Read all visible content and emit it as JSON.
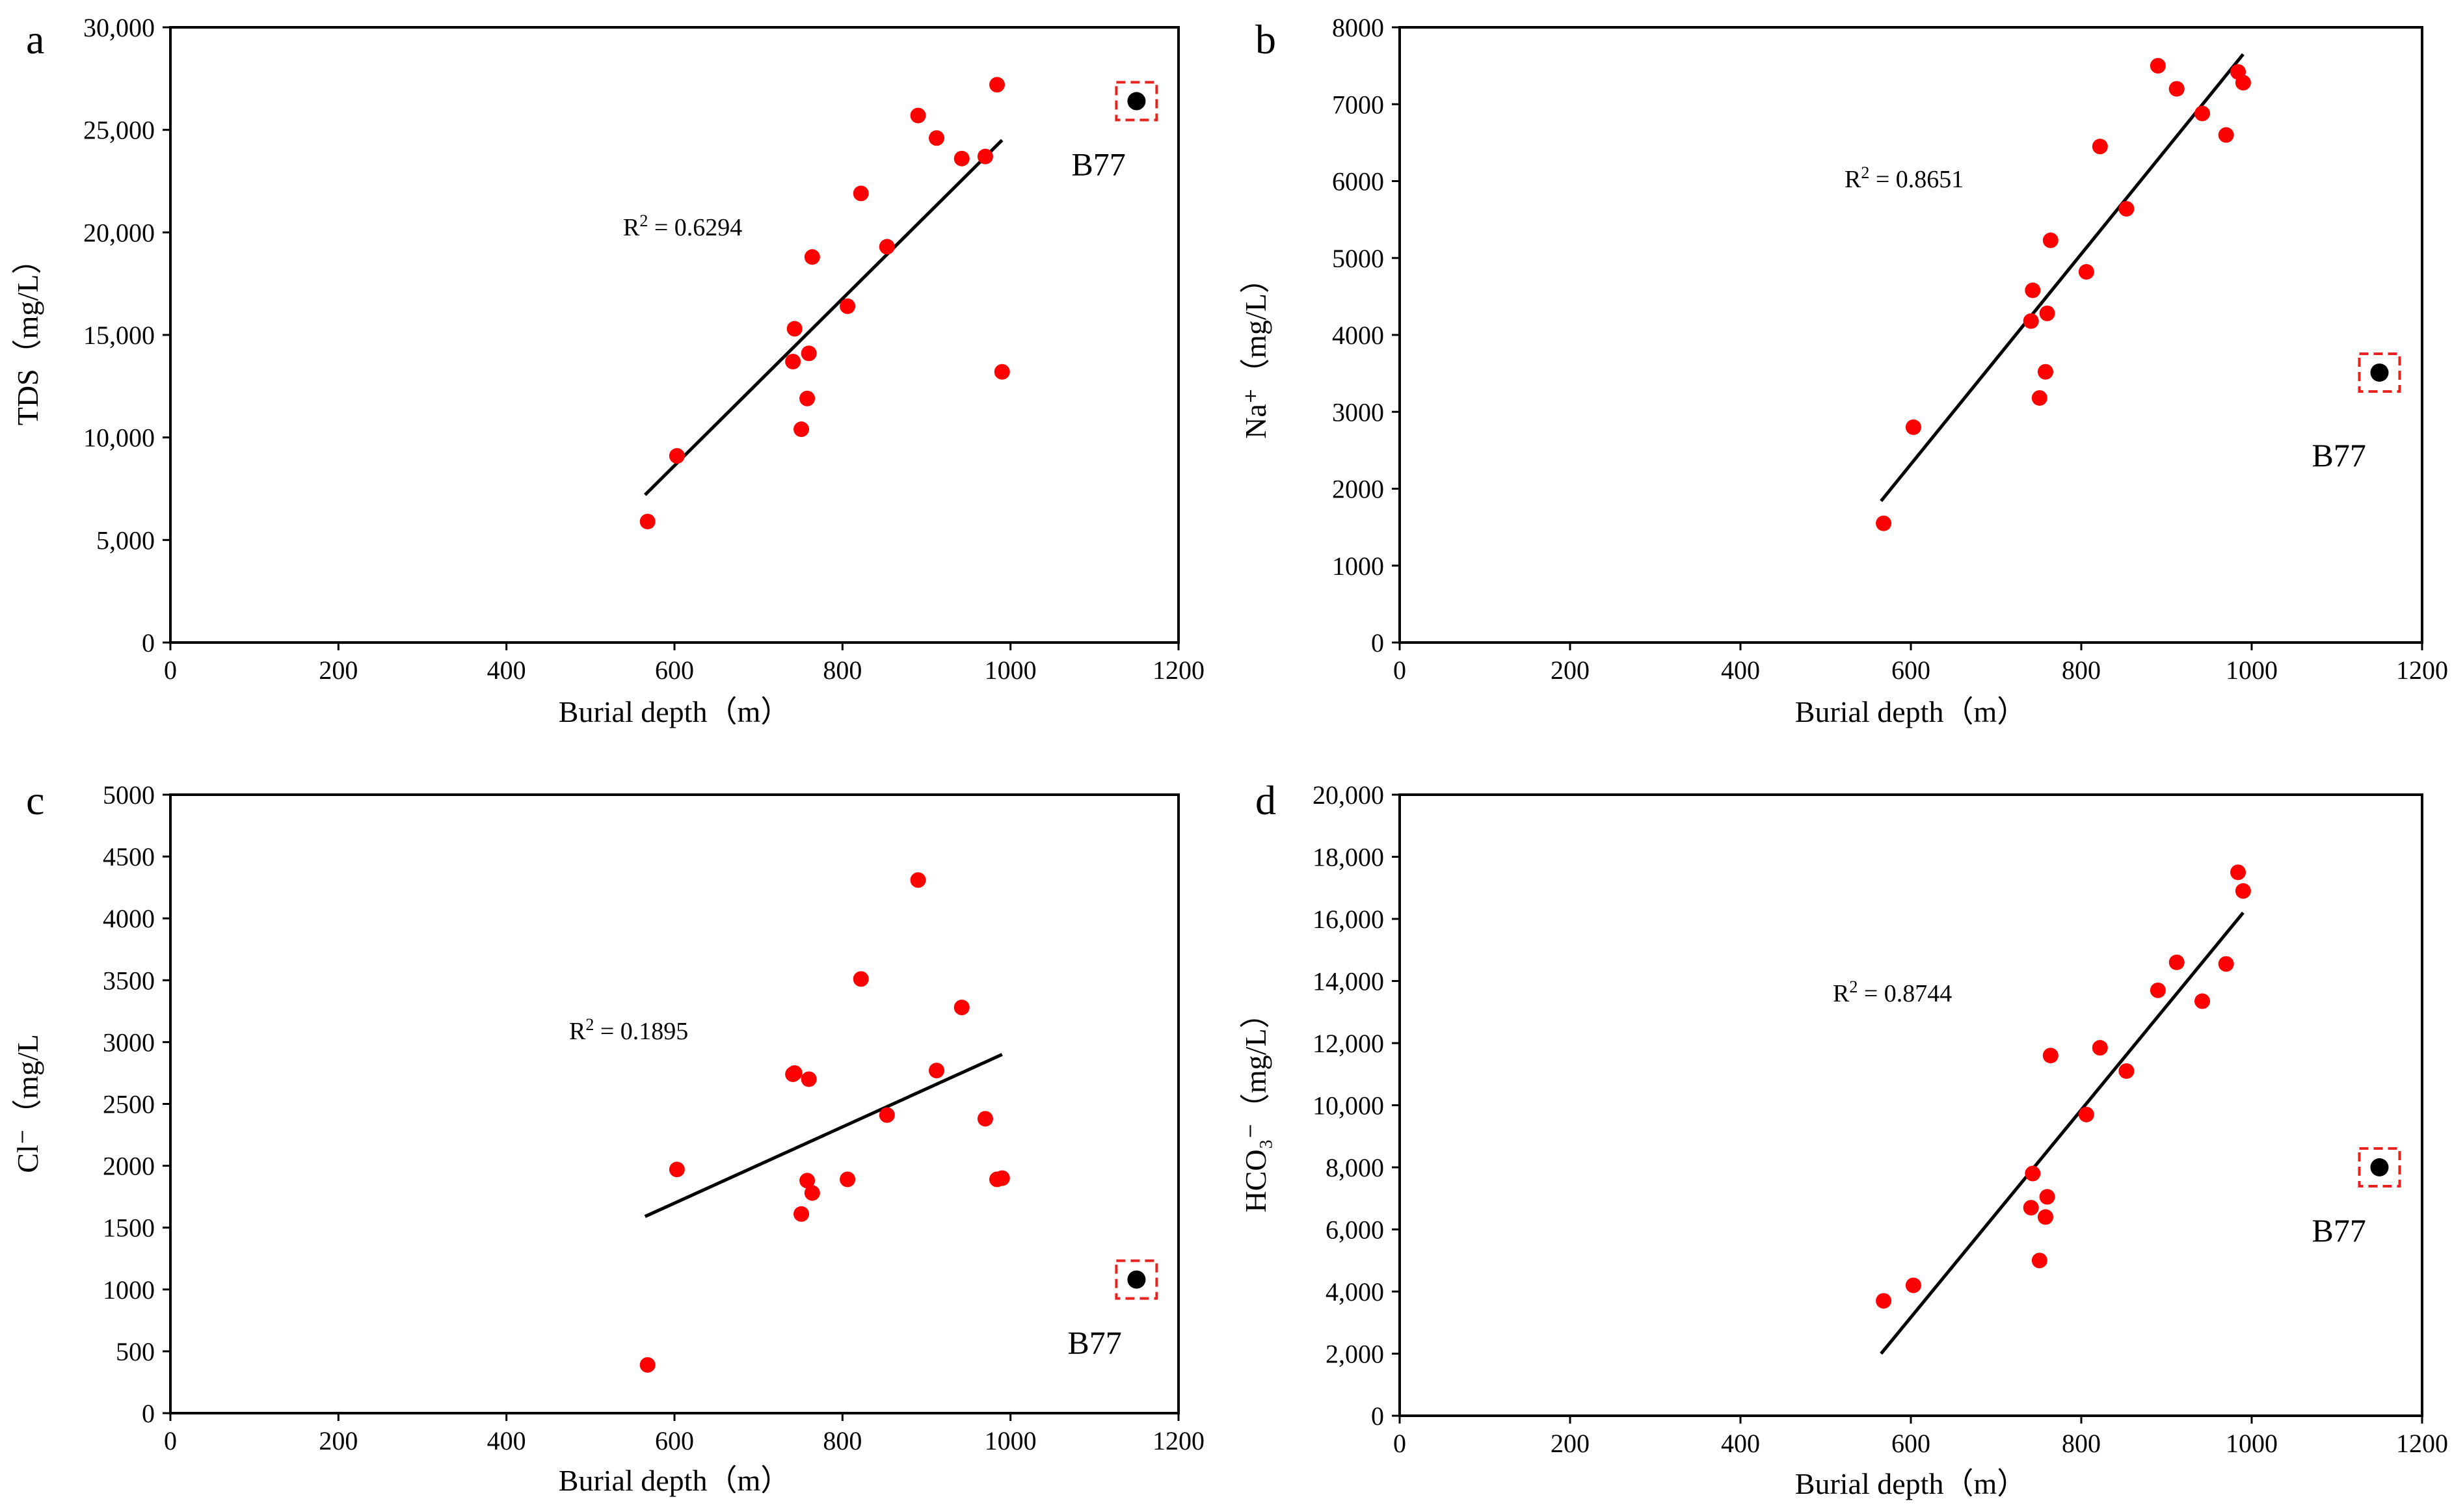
{
  "figure": {
    "panels": [
      "a",
      "b",
      "c",
      "d"
    ]
  },
  "chart_data": [
    {
      "id": "a",
      "type": "scatter",
      "panel_letter": "a",
      "xlabel": "Burial depth（m）",
      "ylabel": "TDS（mg/L）",
      "xlim": [
        0,
        1200
      ],
      "ylim": [
        0,
        30000
      ],
      "x_ticks": [
        0,
        200,
        400,
        600,
        800,
        1000,
        1200
      ],
      "y_ticks": [
        0,
        5000,
        10000,
        15000,
        20000,
        25000,
        30000
      ],
      "x_tick_labels": [
        "0",
        "200",
        "400",
        "600",
        "800",
        "1000",
        "1200"
      ],
      "y_tick_labels": [
        "0",
        "5,000",
        "10,000",
        "15,000",
        "20,000",
        "25,000",
        "30,000"
      ],
      "points": [
        {
          "x": 568,
          "y": 5900
        },
        {
          "x": 603,
          "y": 9100
        },
        {
          "x": 741,
          "y": 13700
        },
        {
          "x": 743,
          "y": 15300
        },
        {
          "x": 751,
          "y": 10400
        },
        {
          "x": 758,
          "y": 11900
        },
        {
          "x": 760,
          "y": 14100
        },
        {
          "x": 764,
          "y": 18800
        },
        {
          "x": 806,
          "y": 16400
        },
        {
          "x": 822,
          "y": 21900
        },
        {
          "x": 853,
          "y": 19300
        },
        {
          "x": 890,
          "y": 25700
        },
        {
          "x": 912,
          "y": 24600
        },
        {
          "x": 942,
          "y": 23600
        },
        {
          "x": 970,
          "y": 23700
        },
        {
          "x": 984,
          "y": 27200
        },
        {
          "x": 990,
          "y": 13200
        }
      ],
      "trendline": {
        "x": [
          565,
          990
        ],
        "y": [
          7200,
          24500
        ]
      },
      "r2_prefix": "R",
      "r2_sup": "2",
      "r2_suffix": " = 0.6294",
      "outlier": {
        "label": "B77",
        "x": 1150,
        "y": 26400
      }
    },
    {
      "id": "b",
      "type": "scatter",
      "panel_letter": "b",
      "xlabel": "Burial depth（m）",
      "ylabel": "Na⁺（mg/L）",
      "xlim": [
        0,
        1200
      ],
      "ylim": [
        0,
        8000
      ],
      "x_ticks": [
        0,
        200,
        400,
        600,
        800,
        1000,
        1200
      ],
      "y_ticks": [
        0,
        1000,
        2000,
        3000,
        4000,
        5000,
        6000,
        7000,
        8000
      ],
      "x_tick_labels": [
        "0",
        "200",
        "400",
        "600",
        "800",
        "1000",
        "1200"
      ],
      "y_tick_labels": [
        "0",
        "1000",
        "2000",
        "3000",
        "4000",
        "5000",
        "6000",
        "7000",
        "8000"
      ],
      "points": [
        {
          "x": 568,
          "y": 1550
        },
        {
          "x": 603,
          "y": 2800
        },
        {
          "x": 741,
          "y": 4180
        },
        {
          "x": 743,
          "y": 4580
        },
        {
          "x": 751,
          "y": 3180
        },
        {
          "x": 758,
          "y": 3520
        },
        {
          "x": 760,
          "y": 4280
        },
        {
          "x": 764,
          "y": 5230
        },
        {
          "x": 806,
          "y": 4820
        },
        {
          "x": 822,
          "y": 6450
        },
        {
          "x": 853,
          "y": 5640
        },
        {
          "x": 890,
          "y": 7500
        },
        {
          "x": 912,
          "y": 7200
        },
        {
          "x": 942,
          "y": 6880
        },
        {
          "x": 970,
          "y": 6600
        },
        {
          "x": 984,
          "y": 7420
        },
        {
          "x": 990,
          "y": 7280
        }
      ],
      "trendline": {
        "x": [
          565,
          990
        ],
        "y": [
          1840,
          7650
        ]
      },
      "r2_prefix": "R",
      "r2_sup": "2",
      "r2_suffix": " = 0.8651",
      "outlier": {
        "label": "B77",
        "x": 1150,
        "y": 3510
      }
    },
    {
      "id": "c",
      "type": "scatter",
      "panel_letter": "c",
      "xlabel": "Burial depth（m）",
      "ylabel": "Cl⁻（mg/L",
      "xlim": [
        0,
        1200
      ],
      "ylim": [
        0,
        5000
      ],
      "x_ticks": [
        0,
        200,
        400,
        600,
        800,
        1000,
        1200
      ],
      "y_ticks": [
        0,
        500,
        1000,
        1500,
        2000,
        2500,
        3000,
        3500,
        4000,
        4500,
        5000
      ],
      "x_tick_labels": [
        "0",
        "200",
        "400",
        "600",
        "800",
        "1000",
        "1200"
      ],
      "y_tick_labels": [
        "0",
        "500",
        "1000",
        "1500",
        "2000",
        "2500",
        "3000",
        "3500",
        "4000",
        "4500",
        "5000"
      ],
      "points": [
        {
          "x": 568,
          "y": 390
        },
        {
          "x": 603,
          "y": 1970
        },
        {
          "x": 741,
          "y": 2740
        },
        {
          "x": 743,
          "y": 2750
        },
        {
          "x": 751,
          "y": 1610
        },
        {
          "x": 758,
          "y": 1880
        },
        {
          "x": 760,
          "y": 2700
        },
        {
          "x": 764,
          "y": 1780
        },
        {
          "x": 806,
          "y": 1890
        },
        {
          "x": 822,
          "y": 3510
        },
        {
          "x": 853,
          "y": 2410
        },
        {
          "x": 890,
          "y": 4310
        },
        {
          "x": 912,
          "y": 2770
        },
        {
          "x": 942,
          "y": 3280
        },
        {
          "x": 970,
          "y": 2380
        },
        {
          "x": 984,
          "y": 1890
        },
        {
          "x": 990,
          "y": 1900
        }
      ],
      "trendline": {
        "x": [
          565,
          990
        ],
        "y": [
          1590,
          2900
        ]
      },
      "r2_prefix": "R",
      "r2_sup": "2",
      "r2_suffix": " = 0.1895",
      "outlier": {
        "label": "B77",
        "x": 1150,
        "y": 1080
      }
    },
    {
      "id": "d",
      "type": "scatter",
      "panel_letter": "d",
      "xlabel": "Burial depth（m）",
      "ylabel": "HCO₃⁻（mg/L）",
      "xlim": [
        0,
        1200
      ],
      "ylim": [
        0,
        20000
      ],
      "x_ticks": [
        0,
        200,
        400,
        600,
        800,
        1000,
        1200
      ],
      "y_ticks": [
        0,
        2000,
        4000,
        6000,
        8000,
        10000,
        12000,
        14000,
        16000,
        18000,
        20000
      ],
      "x_tick_labels": [
        "0",
        "200",
        "400",
        "600",
        "800",
        "1000",
        "1200"
      ],
      "y_tick_labels": [
        "0",
        "2,000",
        "4,000",
        "6,000",
        "8,000",
        "10,000",
        "12,000",
        "14,000",
        "16,000",
        "18,000",
        "20,000"
      ],
      "points": [
        {
          "x": 568,
          "y": 3700
        },
        {
          "x": 603,
          "y": 4200
        },
        {
          "x": 741,
          "y": 6700
        },
        {
          "x": 743,
          "y": 7800
        },
        {
          "x": 751,
          "y": 5000
        },
        {
          "x": 758,
          "y": 6400
        },
        {
          "x": 760,
          "y": 7050
        },
        {
          "x": 764,
          "y": 11600
        },
        {
          "x": 806,
          "y": 9700
        },
        {
          "x": 822,
          "y": 11850
        },
        {
          "x": 853,
          "y": 11100
        },
        {
          "x": 890,
          "y": 13700
        },
        {
          "x": 912,
          "y": 14600
        },
        {
          "x": 942,
          "y": 13350
        },
        {
          "x": 970,
          "y": 14550
        },
        {
          "x": 984,
          "y": 17500
        },
        {
          "x": 990,
          "y": 16900
        }
      ],
      "trendline": {
        "x": [
          565,
          990
        ],
        "y": [
          2000,
          16200
        ]
      },
      "r2_prefix": "R",
      "r2_sup": "2",
      "r2_suffix": " = 0.8744",
      "outlier": {
        "label": "B77",
        "x": 1150,
        "y": 8000
      }
    }
  ]
}
